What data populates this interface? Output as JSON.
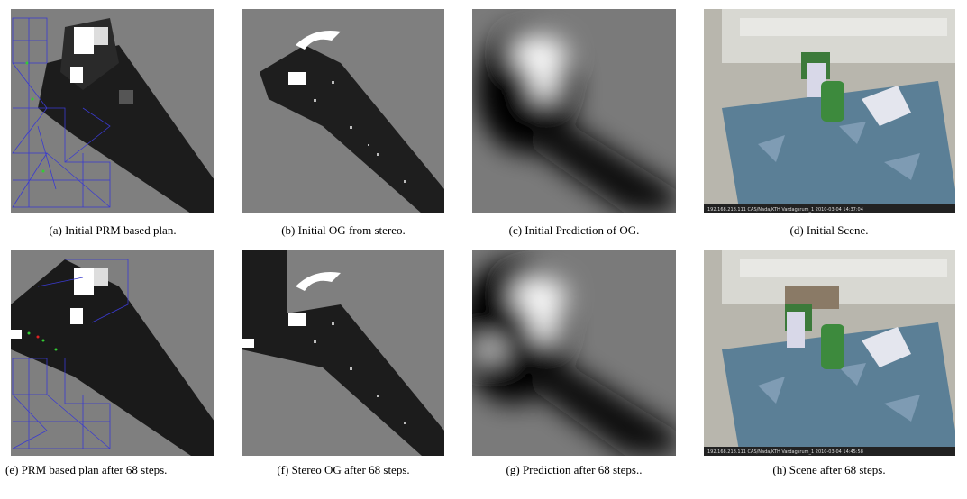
{
  "figure": {
    "panels": [
      {
        "caption": "(a) Initial PRM based plan."
      },
      {
        "caption": "(b) Initial OG from stereo."
      },
      {
        "caption": "(c) Initial Prediction of OG."
      },
      {
        "caption": "(d) Initial Scene.",
        "overlay": "192.168.218.111   CAS/Nada/KTH   Vardagsrum_1   2010-03-04 14:37:04"
      },
      {
        "caption": "(e) PRM based plan after 68 steps."
      },
      {
        "caption": "(f) Stereo OG after 68 steps."
      },
      {
        "caption": "(g) Prediction after 68 steps.."
      },
      {
        "caption": "(h) Scene after 68 steps.",
        "overlay": "192.168.218.111   CAS/Nada/KTH   Vardagsrum_1   2010-03-04 14:45:58"
      }
    ]
  }
}
